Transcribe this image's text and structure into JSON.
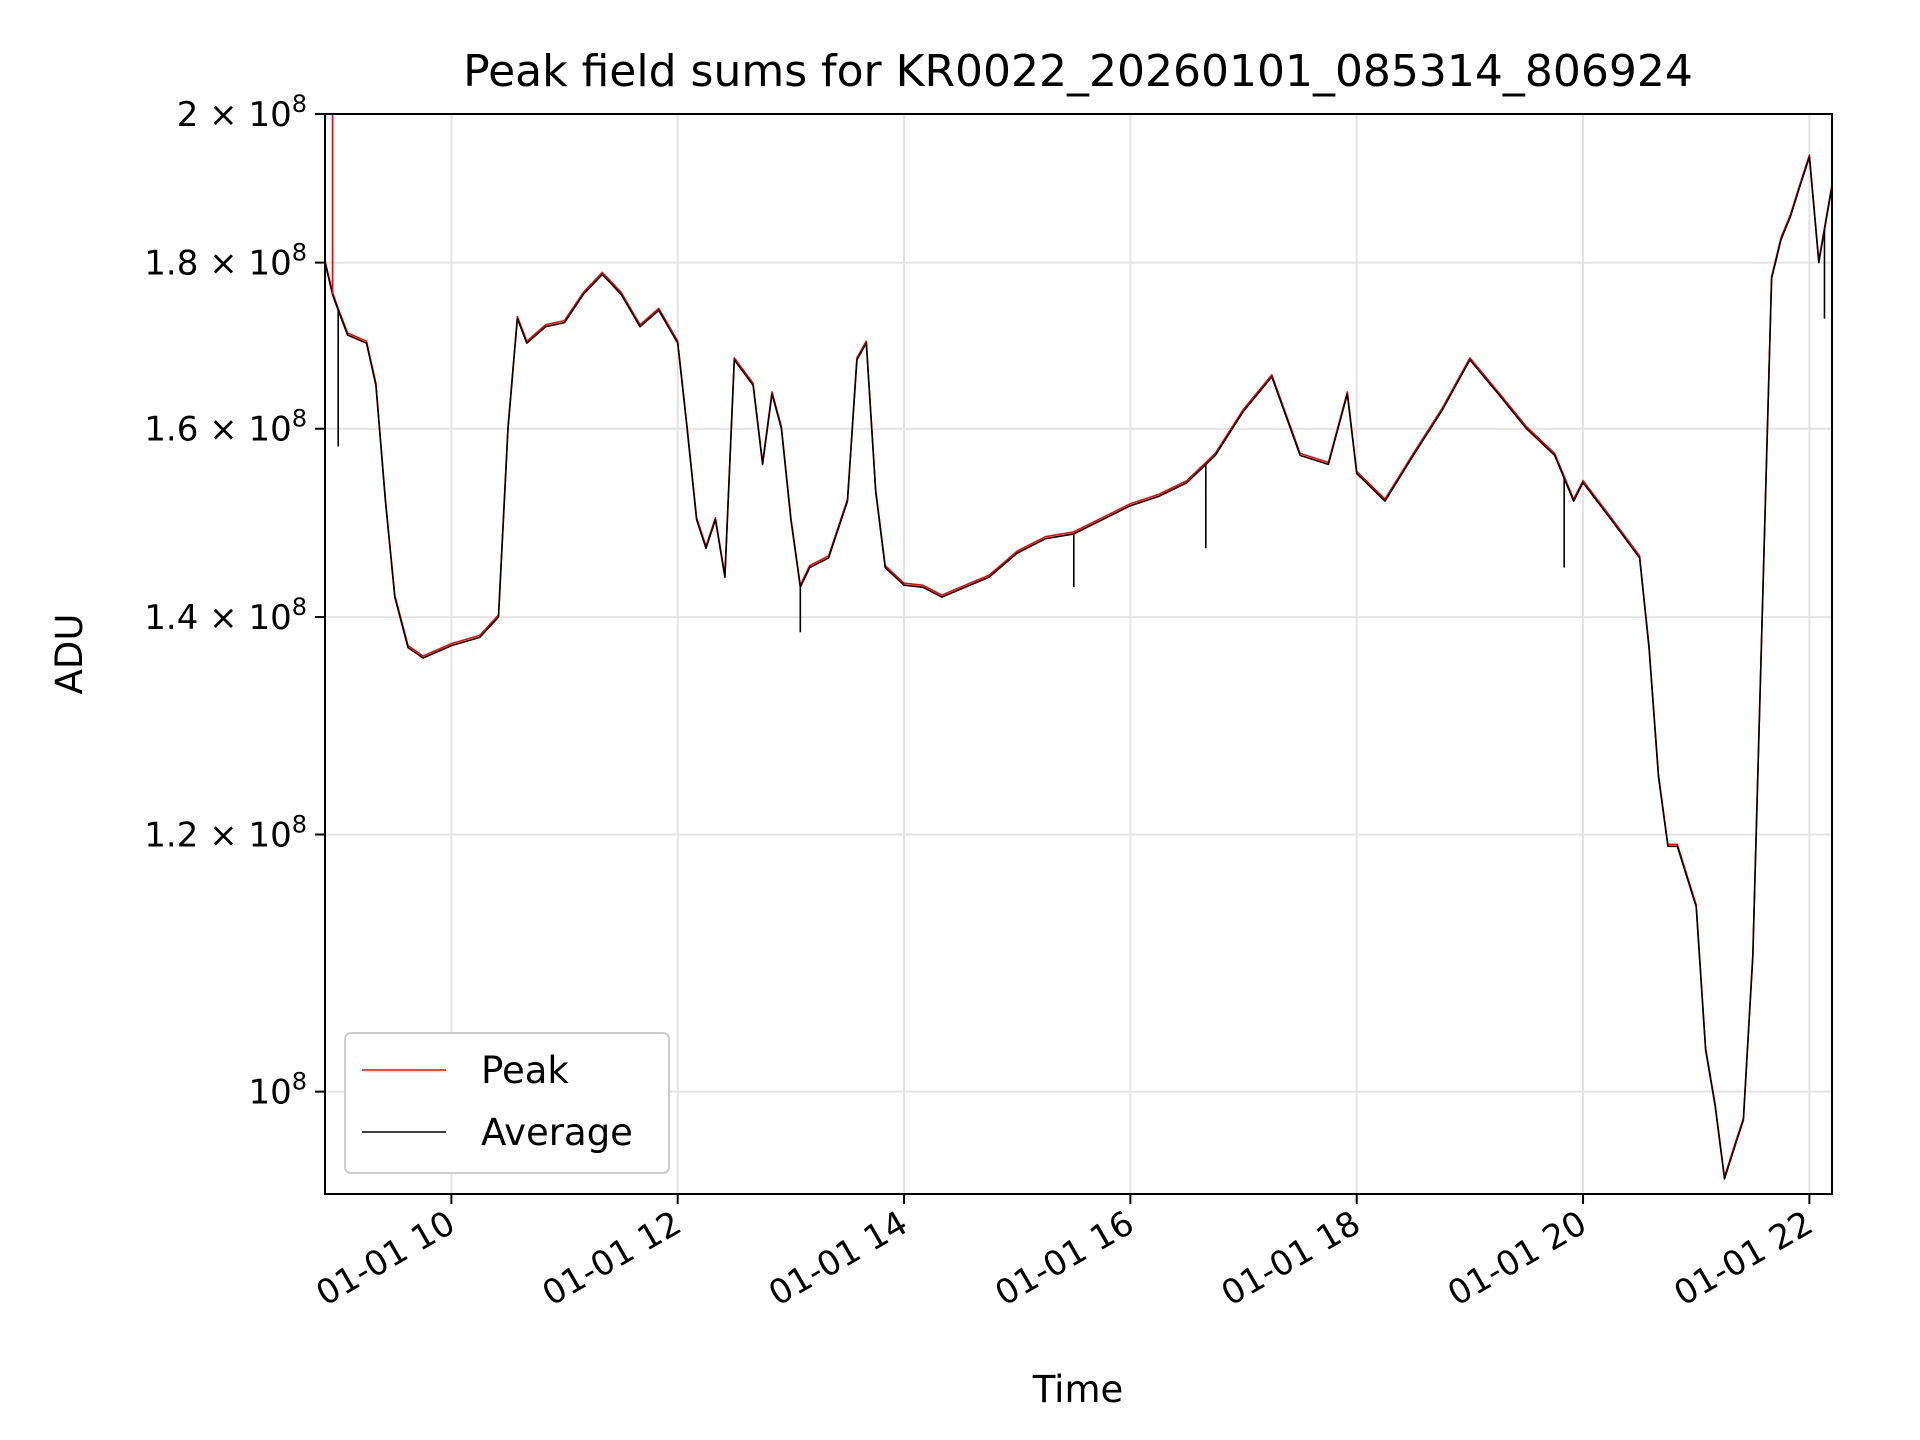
{
  "chart_data": {
    "type": "line",
    "title": "Peak field sums for KR0022_20260101_085314_806924",
    "xlabel": "Time",
    "ylabel": "ADU",
    "y_scale": "log",
    "xlim": [
      "2026-01-01 08:53",
      "2026-01-01 22:12"
    ],
    "ylim": [
      93000000,
      200000000
    ],
    "grid": true,
    "legend_position": "lower left",
    "x_ticks": [
      "01-01 10",
      "01-01 12",
      "01-01 14",
      "01-01 16",
      "01-01 18",
      "01-01 20",
      "01-01 22"
    ],
    "y_ticks": [
      {
        "value": 100000000,
        "mantissa": "",
        "exp": "8"
      },
      {
        "value": 120000000,
        "mantissa": "1.2",
        "exp": "8"
      },
      {
        "value": 140000000,
        "mantissa": "1.4",
        "exp": "8"
      },
      {
        "value": 160000000,
        "mantissa": "1.6",
        "exp": "8"
      },
      {
        "value": 180000000,
        "mantissa": "1.8",
        "exp": "8"
      },
      {
        "value": 200000000,
        "mantissa": "2",
        "exp": "8"
      }
    ],
    "series": [
      {
        "name": "Peak",
        "color": "#ff0000"
      },
      {
        "name": "Average",
        "color": "#000000"
      }
    ],
    "x": [
      "2026-01-01 08:53",
      "2026-01-01 08:57",
      "2026-01-01 09:00",
      "2026-01-01 09:05",
      "2026-01-01 09:10",
      "2026-01-01 09:15",
      "2026-01-01 09:20",
      "2026-01-01 09:25",
      "2026-01-01 09:30",
      "2026-01-01 09:37",
      "2026-01-01 09:45",
      "2026-01-01 10:00",
      "2026-01-01 10:15",
      "2026-01-01 10:25",
      "2026-01-01 10:30",
      "2026-01-01 10:35",
      "2026-01-01 10:40",
      "2026-01-01 10:50",
      "2026-01-01 11:00",
      "2026-01-01 11:10",
      "2026-01-01 11:20",
      "2026-01-01 11:30",
      "2026-01-01 11:40",
      "2026-01-01 11:50",
      "2026-01-01 12:00",
      "2026-01-01 12:05",
      "2026-01-01 12:10",
      "2026-01-01 12:15",
      "2026-01-01 12:20",
      "2026-01-01 12:25",
      "2026-01-01 12:30",
      "2026-01-01 12:40",
      "2026-01-01 12:45",
      "2026-01-01 12:50",
      "2026-01-01 12:55",
      "2026-01-01 13:00",
      "2026-01-01 13:05",
      "2026-01-01 13:10",
      "2026-01-01 13:20",
      "2026-01-01 13:30",
      "2026-01-01 13:35",
      "2026-01-01 13:40",
      "2026-01-01 13:45",
      "2026-01-01 13:50",
      "2026-01-01 14:00",
      "2026-01-01 14:10",
      "2026-01-01 14:20",
      "2026-01-01 14:30",
      "2026-01-01 14:45",
      "2026-01-01 15:00",
      "2026-01-01 15:15",
      "2026-01-01 15:30",
      "2026-01-01 15:45",
      "2026-01-01 16:00",
      "2026-01-01 16:15",
      "2026-01-01 16:30",
      "2026-01-01 16:45",
      "2026-01-01 17:00",
      "2026-01-01 17:15",
      "2026-01-01 17:30",
      "2026-01-01 17:45",
      "2026-01-01 17:55",
      "2026-01-01 18:00",
      "2026-01-01 18:15",
      "2026-01-01 18:30",
      "2026-01-01 18:45",
      "2026-01-01 19:00",
      "2026-01-01 19:15",
      "2026-01-01 19:30",
      "2026-01-01 19:45",
      "2026-01-01 19:55",
      "2026-01-01 20:00",
      "2026-01-01 20:15",
      "2026-01-01 20:30",
      "2026-01-01 20:35",
      "2026-01-01 20:40",
      "2026-01-01 20:45",
      "2026-01-01 20:50",
      "2026-01-01 21:00",
      "2026-01-01 21:05",
      "2026-01-01 21:10",
      "2026-01-01 21:15",
      "2026-01-01 21:20",
      "2026-01-01 21:25",
      "2026-01-01 21:30",
      "2026-01-01 21:35",
      "2026-01-01 21:40",
      "2026-01-01 21:45",
      "2026-01-01 21:50",
      "2026-01-01 21:55",
      "2026-01-01 22:00",
      "2026-01-01 22:05",
      "2026-01-01 22:12"
    ],
    "values": [
      180000000,
      176000000,
      174000000,
      171000000,
      170500000,
      170000000,
      165000000,
      152000000,
      142000000,
      137000000,
      136000000,
      137200000,
      138000000,
      140000000,
      160000000,
      173000000,
      170000000,
      172000000,
      172500000,
      176000000,
      178500000,
      176000000,
      172000000,
      174000000,
      170000000,
      160000000,
      150000000,
      147000000,
      150000000,
      144000000,
      168000000,
      165000000,
      156000000,
      164000000,
      160000000,
      150000000,
      143000000,
      145000000,
      146000000,
      152000000,
      168000000,
      170000000,
      153000000,
      145000000,
      143200000,
      143000000,
      142000000,
      142800000,
      144000000,
      146500000,
      148000000,
      148500000,
      150000000,
      151500000,
      152500000,
      154000000,
      157000000,
      162000000,
      166000000,
      157000000,
      156000000,
      164000000,
      155000000,
      152000000,
      157000000,
      162000000,
      168000000,
      164000000,
      160000000,
      157000000,
      152000000,
      154000000,
      150000000,
      146000000,
      137000000,
      125000000,
      119000000,
      119000000,
      114000000,
      103000000,
      99000000,
      94000000,
      96000000,
      98000000,
      110000000,
      140000000,
      178000000,
      183000000,
      186000000,
      190000000,
      194000000,
      180000000,
      190000000
    ],
    "outliers": [
      {
        "x": "2026-01-01 08:57",
        "y": 200000000
      },
      {
        "x": "2026-01-01 09:00",
        "y": 158000000
      },
      {
        "x": "2026-01-01 13:05",
        "y": 138500000
      },
      {
        "x": "2026-01-01 15:30",
        "y": 143000000
      },
      {
        "x": "2026-01-01 16:40",
        "y": 147000000
      },
      {
        "x": "2026-01-01 19:50",
        "y": 145000000
      },
      {
        "x": "2026-01-01 22:08",
        "y": 173000000
      }
    ]
  }
}
